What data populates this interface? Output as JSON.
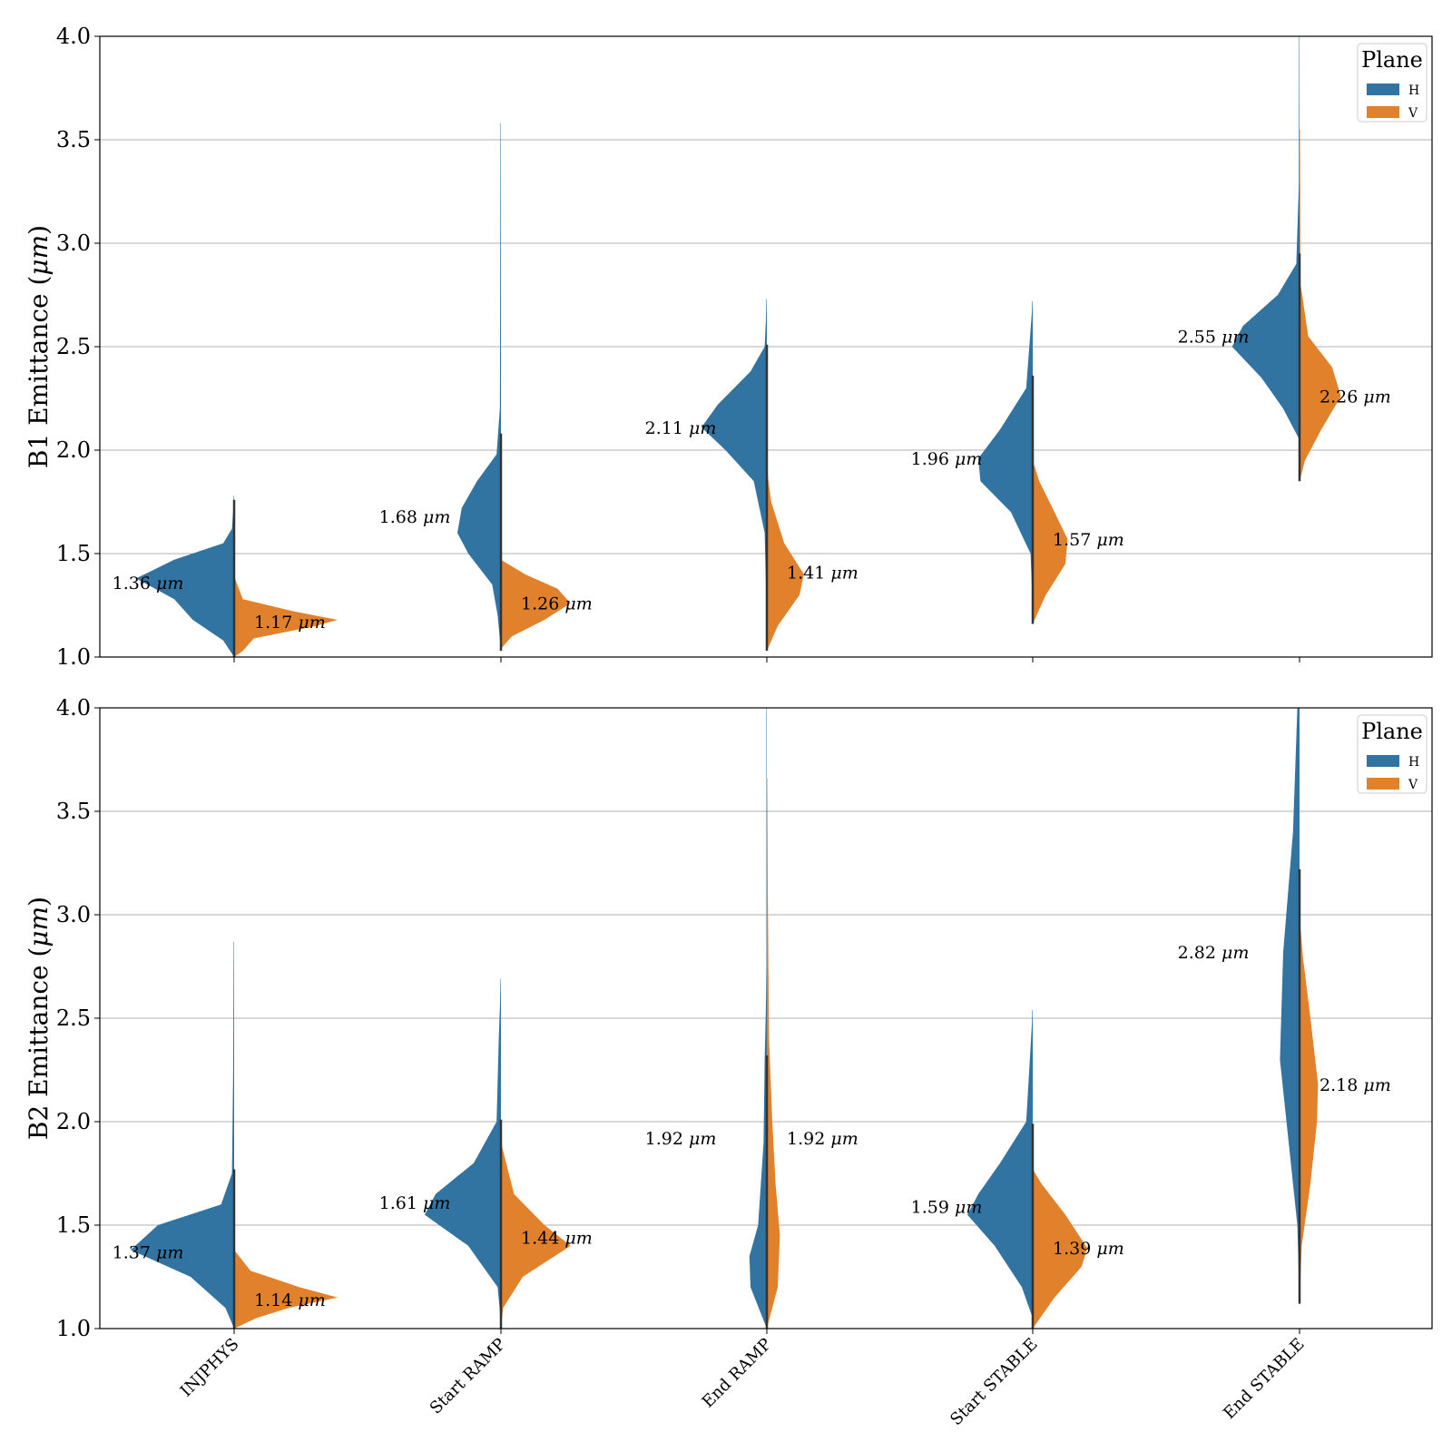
{
  "colors": {
    "H": "#3274a1",
    "V": "#e1812c",
    "grid": "#b0b0b0",
    "axis": "#000000",
    "center_line": "#333333"
  },
  "chart_data": [
    {
      "type": "violin",
      "split": true,
      "ylabel_main": "B1 Emittance (",
      "ylabel_unit": "μm",
      "ylabel_close": ")",
      "ylim": [
        1.0,
        4.0
      ],
      "yticks": [
        "1.0",
        "1.5",
        "2.0",
        "2.5",
        "3.0",
        "3.5",
        "4.0"
      ],
      "grid": true,
      "legend": {
        "title": "Plane",
        "placement": "top-right",
        "entries": [
          "H",
          "V"
        ]
      },
      "categories": [
        "INJPHYS",
        "Start RAMP",
        "End RAMP",
        "Start STABLE",
        "End STABLE"
      ],
      "series": [
        {
          "name": "H",
          "medians": [
            1.36,
            1.68,
            2.11,
            1.96,
            2.55
          ],
          "min": [
            1.0,
            1.03,
            1.18,
            1.24,
            2.05
          ],
          "max": [
            1.78,
            3.58,
            2.73,
            2.72,
            4.0
          ]
        },
        {
          "name": "V",
          "medians": [
            1.17,
            1.26,
            1.41,
            1.57,
            2.26
          ],
          "min": [
            1.0,
            1.04,
            1.03,
            1.16,
            1.85
          ],
          "max": [
            1.39,
            1.47,
            1.91,
            1.95,
            3.55
          ]
        }
      ],
      "annotations": {
        "H": [
          "1.36",
          "1.68",
          "2.11",
          "1.96",
          "2.55"
        ],
        "V": [
          "1.17",
          "1.26",
          "1.41",
          "1.57",
          "2.26"
        ],
        "unit": "μm"
      }
    },
    {
      "type": "violin",
      "split": true,
      "ylabel_main": "B2 Emittance (",
      "ylabel_unit": "μm",
      "ylabel_close": ")",
      "ylim": [
        1.0,
        4.0
      ],
      "yticks": [
        "1.0",
        "1.5",
        "2.0",
        "2.5",
        "3.0",
        "3.5",
        "4.0"
      ],
      "grid": true,
      "legend": {
        "title": "Plane",
        "placement": "top-right",
        "entries": [
          "H",
          "V"
        ]
      },
      "categories": [
        "INJPHYS",
        "Start RAMP",
        "End RAMP",
        "Start STABLE",
        "End STABLE"
      ],
      "series": [
        {
          "name": "H",
          "medians": [
            1.37,
            1.61,
            1.92,
            1.59,
            2.82
          ],
          "min": [
            1.0,
            1.03,
            1.0,
            1.05,
            1.12
          ],
          "max": [
            2.87,
            2.69,
            4.0,
            2.54,
            4.0
          ]
        },
        {
          "name": "V",
          "medians": [
            1.14,
            1.44,
            1.92,
            1.39,
            2.18
          ],
          "min": [
            1.0,
            1.0,
            1.0,
            1.0,
            1.12
          ],
          "max": [
            1.38,
            1.9,
            3.66,
            1.77,
            3.0
          ]
        }
      ],
      "annotations": {
        "H": [
          "1.37",
          "1.61",
          "1.92",
          "1.59",
          "2.82"
        ],
        "V": [
          "1.14",
          "1.44",
          "1.92",
          "1.39",
          "2.18"
        ],
        "unit": "μm"
      }
    }
  ]
}
